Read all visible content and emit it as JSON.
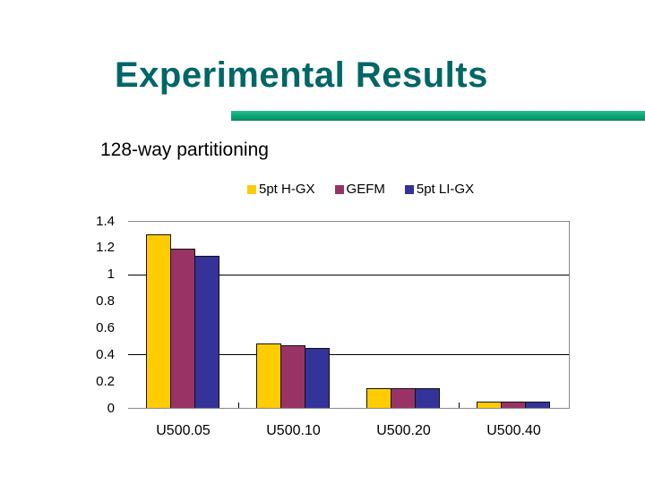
{
  "slide": {
    "title": "Experimental Results",
    "subtitle": "128-way partitioning",
    "title_color": "#006666",
    "rule_color": "#10a878"
  },
  "chart_data": {
    "type": "bar",
    "title": "",
    "xlabel": "",
    "ylabel": "",
    "categories": [
      "U500.05",
      "U500.10",
      "U500.20",
      "U500.40"
    ],
    "series": [
      {
        "name": "5pt H-GX",
        "color": "#ffcc00",
        "values": [
          1.3,
          0.48,
          0.15,
          0.05
        ]
      },
      {
        "name": "GEFM",
        "color": "#993366",
        "values": [
          1.19,
          0.47,
          0.15,
          0.05
        ]
      },
      {
        "name": "5pt LI-GX",
        "color": "#333399",
        "values": [
          1.14,
          0.45,
          0.15,
          0.05
        ]
      }
    ],
    "ylim": [
      0,
      1.4
    ],
    "yticks": [
      "0",
      "0.2",
      "0.4",
      "0.6",
      "0.8",
      "1",
      "1.2",
      "1.4"
    ],
    "gridlines_at": [
      0.4,
      1.0
    ],
    "grid": true,
    "legend_position": "top"
  }
}
